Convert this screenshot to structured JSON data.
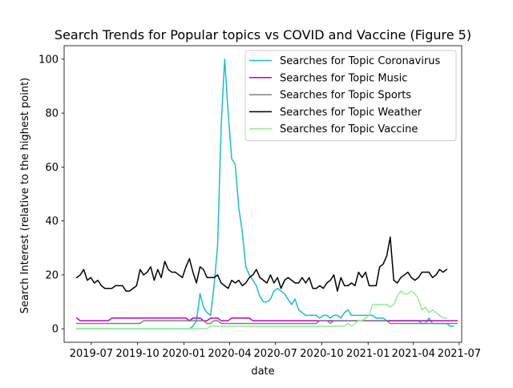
{
  "chart_data": {
    "type": "line",
    "title": "Search Trends for Popular topics vs COVID and Vaccine (Figure 5)",
    "xlabel": "date",
    "ylabel": "Search Interest (relative to the highest point)",
    "ylim": [
      -5,
      105
    ],
    "xlim": [
      "2019-05-08",
      "2021-07-06"
    ],
    "yticks": [
      0,
      20,
      40,
      60,
      80,
      100
    ],
    "xticks": [
      "2019-07",
      "2019-10",
      "2020-01",
      "2020-04",
      "2020-07",
      "2020-10",
      "2021-01",
      "2021-04",
      "2021-07"
    ],
    "grid": false,
    "legend_position": "top-right",
    "x_start": "2019-06-02",
    "x_step_days": 7,
    "series": [
      {
        "name": "Searches for Topic Coronavirus",
        "color": "#17becf",
        "values": [
          0,
          0,
          0,
          0,
          0,
          0,
          0,
          0,
          0,
          0,
          0,
          0,
          0,
          0,
          0,
          0,
          0,
          0,
          0,
          0,
          0,
          0,
          0,
          0,
          0,
          0,
          0,
          0,
          0,
          0,
          0,
          0,
          0,
          1,
          3,
          13,
          8,
          6,
          5,
          16,
          31,
          75,
          100,
          80,
          63,
          61,
          45,
          36,
          23,
          20,
          18,
          16,
          12,
          10,
          10,
          11,
          14,
          15,
          14,
          13,
          11,
          9,
          11,
          7,
          6,
          5,
          5,
          5,
          5,
          4,
          5,
          5,
          4,
          5,
          5,
          4,
          6,
          7,
          5,
          5,
          5,
          5,
          5,
          5,
          5,
          4,
          4,
          4,
          3,
          3,
          3,
          3,
          3,
          3,
          3,
          3,
          3,
          3,
          2,
          2,
          4,
          2,
          2,
          2,
          2,
          2,
          1,
          1
        ]
      },
      {
        "name": "Searches for Topic Music",
        "color": "#bf00bf",
        "values": [
          4,
          3,
          3,
          3,
          3,
          3,
          3,
          3,
          3,
          3,
          4,
          4,
          4,
          4,
          4,
          4,
          4,
          4,
          4,
          4,
          4,
          4,
          4,
          4,
          4,
          4,
          4,
          4,
          4,
          4,
          4,
          4,
          3,
          4,
          4,
          4,
          3,
          3,
          4,
          4,
          4,
          3,
          3,
          3,
          4,
          4,
          4,
          4,
          4,
          4,
          3,
          3,
          3,
          3,
          3,
          3,
          3,
          3,
          3,
          3,
          3,
          3,
          3,
          3,
          3,
          3,
          3,
          3,
          3,
          3,
          3,
          3,
          3,
          3,
          3,
          3,
          3,
          3,
          3,
          3,
          3,
          3,
          3,
          3,
          3,
          3,
          3,
          3,
          3,
          3,
          3,
          3,
          3,
          3,
          3,
          3,
          3,
          3,
          3,
          3,
          3,
          3,
          3,
          3,
          3,
          3,
          3,
          3,
          3
        ]
      },
      {
        "name": "Searches for Topic Sports",
        "color": "#7f7f7f",
        "values": [
          2,
          2,
          2,
          2,
          2,
          2,
          2,
          2,
          2,
          2,
          2,
          2,
          2,
          2,
          2,
          2,
          2,
          2,
          2,
          3,
          3,
          3,
          3,
          3,
          3,
          3,
          3,
          3,
          3,
          3,
          3,
          3,
          3,
          3,
          3,
          3,
          3,
          2,
          2,
          3,
          3,
          2,
          2,
          2,
          2,
          2,
          2,
          2,
          2,
          2,
          2,
          2,
          2,
          2,
          2,
          2,
          2,
          2,
          2,
          2,
          2,
          2,
          2,
          2,
          2,
          2,
          2,
          2,
          2,
          3,
          3,
          3,
          2,
          3,
          3,
          3,
          3,
          3,
          3,
          3,
          3,
          3,
          3,
          3,
          3,
          3,
          3,
          3,
          3,
          2,
          2,
          2,
          2,
          2,
          2,
          2,
          2,
          2,
          2,
          2,
          2,
          2,
          2,
          2,
          2,
          2,
          2,
          2,
          2
        ]
      },
      {
        "name": "Searches for Topic Weather",
        "color": "#000000",
        "values": [
          19,
          20,
          22,
          18,
          19,
          17,
          18,
          16,
          15,
          15,
          15,
          16,
          16,
          16,
          14,
          14,
          15,
          16,
          22,
          20,
          21,
          23,
          18,
          22,
          19,
          25,
          22,
          21,
          21,
          20,
          19,
          23,
          26,
          21,
          17,
          23,
          22,
          19,
          19,
          19,
          20,
          17,
          16,
          15,
          18,
          17,
          18,
          16,
          17,
          19,
          20,
          22,
          19,
          18,
          17,
          20,
          17,
          19,
          15,
          18,
          19,
          18,
          17,
          17,
          19,
          17,
          19,
          15,
          15,
          16,
          15,
          17,
          18,
          20,
          14,
          19,
          16,
          16,
          17,
          16,
          21,
          19,
          21,
          16,
          16,
          16,
          23,
          24,
          27,
          34,
          18,
          17,
          19,
          20,
          21,
          19,
          18,
          19,
          21,
          21,
          21,
          19,
          20,
          22,
          21,
          22
        ]
      },
      {
        "name": "Searches for Topic Vaccine",
        "color": "#90ee90",
        "values": [
          0,
          0,
          0,
          0,
          0,
          0,
          0,
          0,
          0,
          0,
          0,
          0,
          0,
          0,
          0,
          0,
          0,
          0,
          0,
          0,
          0,
          0,
          0,
          0,
          0,
          0,
          0,
          0,
          0,
          0,
          0,
          0,
          0,
          0,
          0,
          0,
          0,
          0,
          1,
          1,
          1,
          1,
          1,
          1,
          1,
          1,
          1,
          1,
          1,
          1,
          1,
          1,
          1,
          1,
          1,
          1,
          1,
          1,
          1,
          1,
          1,
          1,
          1,
          1,
          1,
          1,
          1,
          1,
          1,
          1,
          1,
          1,
          1,
          1,
          1,
          1,
          1,
          2,
          1,
          2,
          3,
          3,
          4,
          5,
          9,
          9,
          9,
          9,
          9,
          8,
          9,
          12,
          14,
          13,
          13,
          14,
          13,
          11,
          7,
          8,
          6,
          7,
          6,
          5,
          4,
          4
        ]
      }
    ]
  }
}
